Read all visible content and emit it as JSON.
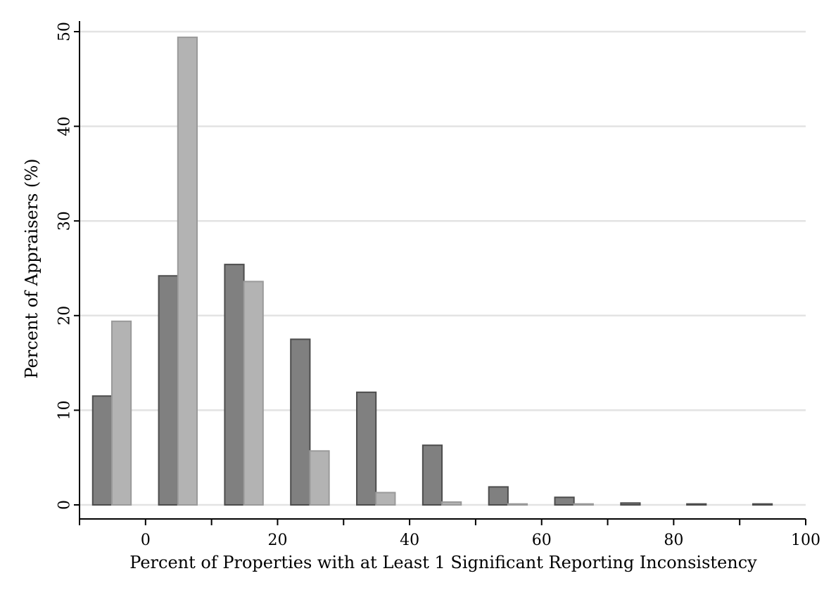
{
  "chart_data": {
    "type": "bar",
    "title": "",
    "xlabel": "Percent of Properties with at Least 1 Significant Reporting Inconsistency",
    "ylabel": "Percent of Appraisers (%)",
    "xlim": [
      -10,
      100
    ],
    "ylim": [
      0,
      50
    ],
    "xticks": [
      0,
      20,
      40,
      60,
      80,
      100
    ],
    "xticks_minor": [
      -10,
      10,
      30,
      50,
      70,
      90
    ],
    "yticks": [
      0,
      10,
      20,
      30,
      40,
      50
    ],
    "grid": true,
    "bins": [
      -10,
      0,
      10,
      20,
      30,
      40,
      50,
      60,
      70,
      80,
      90
    ],
    "series": [
      {
        "color": "#808080",
        "values": [
          11.5,
          24.2,
          25.4,
          17.5,
          11.9,
          6.3,
          1.9,
          0.8,
          0.2,
          0.1,
          0.1
        ]
      },
      {
        "color": "#b3b3b3",
        "values": [
          19.4,
          49.4,
          23.6,
          5.7,
          1.3,
          0.3,
          0.1,
          0.1,
          0,
          0,
          0
        ]
      }
    ]
  }
}
